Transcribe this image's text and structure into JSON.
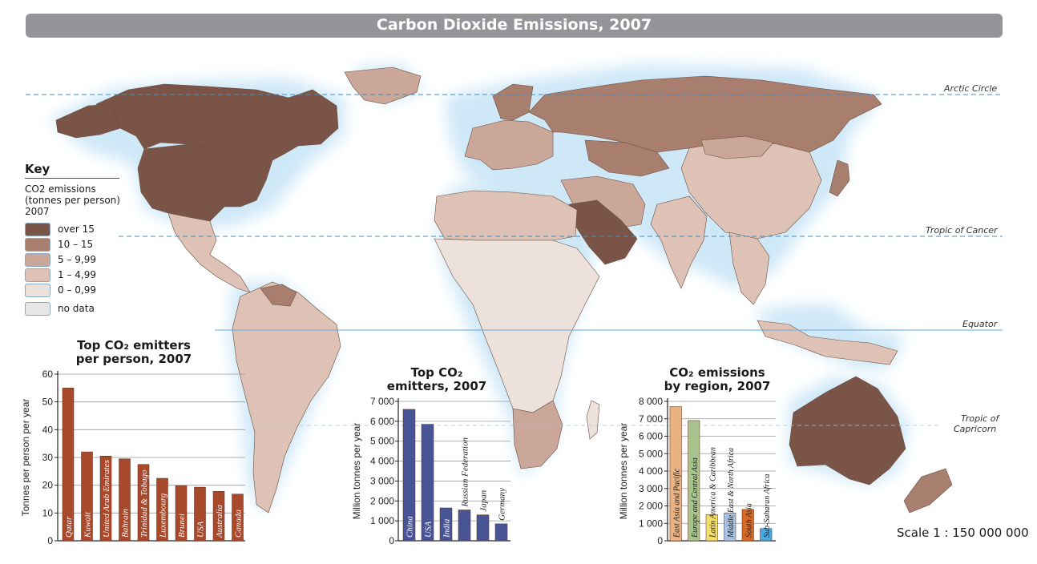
{
  "title": "Carbon Dioxide Emissions, 2007",
  "reference_lines": {
    "arctic": "Arctic Circle",
    "cancer": "Tropic of Cancer",
    "equator": "Equator",
    "capricorn_1": "Tropic of",
    "capricorn_2": "Capricorn"
  },
  "colors": {
    "over15": "#7a5446",
    "c10_15": "#a87e6e",
    "c5_10": "#caa799",
    "c1_5": "#ddc2b5",
    "c0_1": "#ede1db",
    "nodata": "#e6e6e6",
    "ocean_glow": "#cfe8f8",
    "bar_person": "#a9492c",
    "bar_emitters": "#475597"
  },
  "key": {
    "title": "Key",
    "subtitle_1": "CO2 emissions",
    "subtitle_2": "(tonnes per person)",
    "subtitle_3": "2007",
    "items": [
      {
        "label": "over 15",
        "color": "#7a5446"
      },
      {
        "label": "10 – 15",
        "color": "#a87e6e"
      },
      {
        "label": "5 – 9,99",
        "color": "#caa799"
      },
      {
        "label": "1 – 4,99",
        "color": "#ddc2b5"
      },
      {
        "label": "0 – 0,99",
        "color": "#ede1db"
      },
      {
        "label": "no data",
        "color": "#e6e6e6"
      }
    ]
  },
  "chart_data": [
    {
      "type": "bar",
      "title_1": "Top CO₂ emitters",
      "title_2": "per person, 2007",
      "ylabel": "Tonnes per person per year",
      "ylim": [
        0,
        60
      ],
      "yticks": [
        "0",
        "10",
        "20",
        "30",
        "40",
        "50",
        "60"
      ],
      "color": "#a9492c",
      "categories": [
        "Qatar",
        "Kuwait",
        "United Arab Emirates",
        "Bahrain",
        "Trinidad & Tobago",
        "Luxembourg",
        "Brunei",
        "USA",
        "Australia",
        "Canada"
      ],
      "values": [
        55,
        32,
        30.5,
        29.5,
        27.5,
        22.5,
        19.8,
        19.3,
        17.8,
        16.8
      ]
    },
    {
      "type": "bar",
      "title_1": "Top CO₂",
      "title_2": "emitters, 2007",
      "ylabel": "Million tonnes per year",
      "ylim": [
        0,
        7000
      ],
      "yticks": [
        "0",
        "1 000",
        "2 000",
        "3 000",
        "4 000",
        "5 000",
        "6 000",
        "7 000"
      ],
      "color": "#475597",
      "categories": [
        "China",
        "USA",
        "India",
        "Russian Federation",
        "Japan",
        "Germany"
      ],
      "values": [
        6600,
        5850,
        1650,
        1550,
        1300,
        850
      ]
    },
    {
      "type": "bar",
      "title_1": "CO₂ emissions",
      "title_2": "by region, 2007",
      "ylabel": "Million tonnes per year",
      "ylim": [
        0,
        8000
      ],
      "yticks": [
        "0",
        "1 000",
        "2 000",
        "3 000",
        "4 000",
        "5 000",
        "6 000",
        "7 000",
        "8 000"
      ],
      "categories": [
        "East Asia and Pacific",
        "Europe and Central Asia",
        "Latin America & Caribbean",
        "Middle East & North Africa",
        "South Asia",
        "Sub-Saharan Africa"
      ],
      "colors": [
        "#e9b282",
        "#a8c38d",
        "#f2df6a",
        "#a5c2e3",
        "#d56a28",
        "#4ba9df"
      ],
      "values": [
        7700,
        6900,
        1500,
        1600,
        1800,
        700
      ]
    }
  ],
  "scale": "Scale 1 : 150 000 000"
}
